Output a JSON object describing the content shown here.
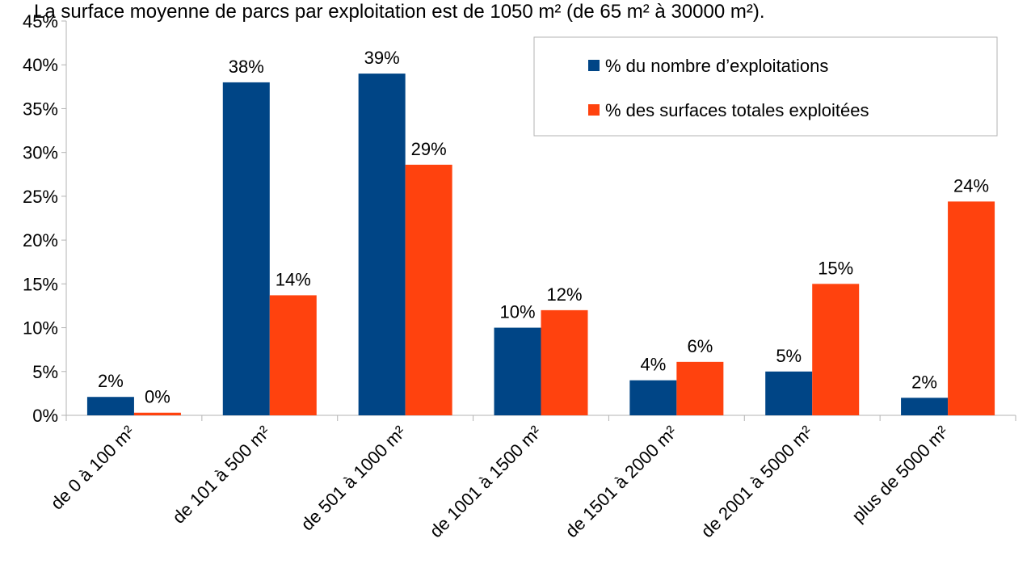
{
  "title": "La surface moyenne de parcs par exploitation est de 1050 m² (de 65 m² à 30000 m²).",
  "chart_data": {
    "type": "bar",
    "categories": [
      "de 0 à 100 m²",
      "de 101 à 500 m²",
      "de 501 à 1000 m²",
      "de 1001 à 1500 m²",
      "de 1501 à 2000 m²",
      "de 2001 à 5000 m²",
      "plus de 5000 m²"
    ],
    "series": [
      {
        "name": "% du nombre d’exploitations",
        "values": [
          2.1,
          38,
          39,
          10,
          4,
          5,
          2
        ],
        "labels": [
          "2%",
          "38%",
          "39%",
          "10%",
          "4%",
          "5%",
          "2%"
        ],
        "color": "#004586"
      },
      {
        "name": "% des surfaces totales exploitées",
        "values": [
          0.3,
          13.7,
          28.6,
          12,
          6.1,
          15,
          24.4
        ],
        "labels": [
          "0%",
          "14%",
          "29%",
          "12%",
          "6%",
          "15%",
          "24%"
        ],
        "color": "#ff420e"
      }
    ],
    "yticks": [
      "0%",
      "5%",
      "10%",
      "15%",
      "20%",
      "25%",
      "30%",
      "35%",
      "40%",
      "45%"
    ],
    "ylim": [
      0,
      45
    ],
    "xlabel": "",
    "ylabel": "",
    "grid": false,
    "legend_position": "top-right"
  }
}
